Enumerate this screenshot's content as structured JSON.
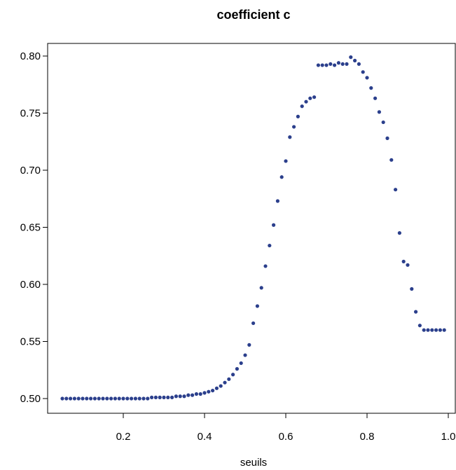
{
  "chart_data": {
    "type": "scatter",
    "title": "coefficient c",
    "xlabel": "seuils",
    "ylabel": "",
    "xlim": [
      0.05,
      1.0
    ],
    "ylim": [
      0.5,
      0.8
    ],
    "x_ticks": [
      0.2,
      0.4,
      0.6,
      0.8,
      1.0
    ],
    "x_tick_labels": [
      "0.2",
      "0.4",
      "0.6",
      "0.8",
      "1.0"
    ],
    "y_ticks": [
      0.5,
      0.55,
      0.6,
      0.65,
      0.7,
      0.75,
      0.8
    ],
    "y_tick_labels": [
      "0.50",
      "0.55",
      "0.60",
      "0.65",
      "0.70",
      "0.75",
      "0.80"
    ],
    "grid": false,
    "legend": "none",
    "point_color": "#2B3F8C",
    "series": [
      {
        "x": [
          0.05,
          0.06,
          0.07,
          0.08,
          0.09,
          0.1,
          0.11,
          0.12,
          0.13,
          0.14,
          0.15,
          0.16,
          0.17,
          0.18,
          0.19,
          0.2,
          0.21,
          0.22,
          0.23,
          0.24,
          0.25,
          0.26,
          0.27,
          0.28,
          0.29,
          0.3,
          0.31,
          0.32,
          0.33,
          0.34,
          0.35,
          0.36,
          0.37,
          0.38,
          0.39,
          0.4,
          0.41,
          0.42,
          0.43,
          0.44,
          0.45,
          0.46,
          0.47,
          0.48,
          0.49,
          0.5,
          0.51,
          0.52,
          0.53,
          0.54,
          0.55,
          0.56,
          0.57,
          0.58,
          0.59,
          0.6,
          0.61,
          0.62,
          0.63,
          0.64,
          0.65,
          0.66,
          0.67,
          0.68,
          0.69,
          0.7,
          0.71,
          0.72,
          0.73,
          0.74,
          0.75,
          0.76,
          0.77,
          0.78,
          0.79,
          0.8,
          0.81,
          0.82,
          0.83,
          0.84,
          0.85,
          0.86,
          0.87,
          0.88,
          0.89,
          0.9,
          0.91,
          0.92,
          0.93,
          0.94,
          0.95,
          0.96,
          0.97,
          0.98,
          0.99
        ],
        "y": [
          0.5,
          0.5,
          0.5,
          0.5,
          0.5,
          0.5,
          0.5,
          0.5,
          0.5,
          0.5,
          0.5,
          0.5,
          0.5,
          0.5,
          0.5,
          0.5,
          0.5,
          0.5,
          0.5,
          0.5,
          0.5,
          0.5,
          0.501,
          0.501,
          0.501,
          0.501,
          0.501,
          0.501,
          0.502,
          0.502,
          0.502,
          0.503,
          0.503,
          0.504,
          0.504,
          0.505,
          0.506,
          0.507,
          0.509,
          0.511,
          0.514,
          0.517,
          0.521,
          0.526,
          0.531,
          0.538,
          0.547,
          0.566,
          0.581,
          0.597,
          0.616,
          0.634,
          0.652,
          0.673,
          0.694,
          0.708,
          0.729,
          0.738,
          0.747,
          0.756,
          0.76,
          0.763,
          0.764,
          0.792,
          0.792,
          0.792,
          0.793,
          0.792,
          0.794,
          0.793,
          0.793,
          0.799,
          0.796,
          0.793,
          0.786,
          0.781,
          0.772,
          0.763,
          0.751,
          0.742,
          0.728,
          0.709,
          0.683,
          0.645,
          0.62,
          0.617,
          0.596,
          0.576,
          0.564,
          0.56,
          0.56,
          0.56,
          0.56,
          0.56,
          0.56
        ]
      }
    ]
  }
}
